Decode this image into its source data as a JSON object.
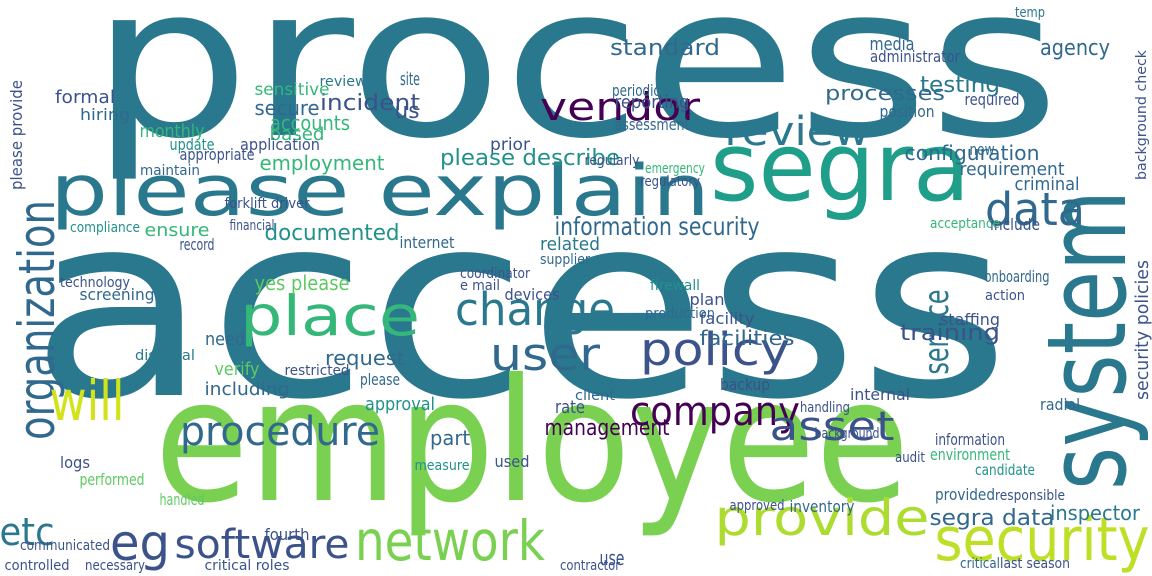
{
  "words": [
    {
      "text": "process",
      "color": "#2a788e"
    },
    {
      "text": "access",
      "color": "#2a788e"
    },
    {
      "text": "employee",
      "color": "#7ad151"
    },
    {
      "text": "please explain",
      "color": "#2a788e"
    },
    {
      "text": "segra",
      "color": "#1f9e89"
    },
    {
      "text": "system",
      "color": "#2a788e"
    },
    {
      "text": "security",
      "color": "#bddf26"
    },
    {
      "text": "provide",
      "color": "#addc30"
    },
    {
      "text": "network",
      "color": "#7ad151"
    },
    {
      "text": "software",
      "color": "#3b528b"
    },
    {
      "text": "procedure",
      "color": "#31688e"
    },
    {
      "text": "company",
      "color": "#440154"
    },
    {
      "text": "asset",
      "color": "#3b528b"
    },
    {
      "text": "organization",
      "color": "#31688e"
    },
    {
      "text": "will",
      "color": "#d2e21b"
    },
    {
      "text": "eg",
      "color": "#3b528b"
    },
    {
      "text": "etc",
      "color": "#2a788e"
    },
    {
      "text": "place",
      "color": "#35b779"
    },
    {
      "text": "change",
      "color": "#2a788e"
    },
    {
      "text": "user",
      "color": "#31688e"
    },
    {
      "text": "policy",
      "color": "#3b528b"
    },
    {
      "text": "data",
      "color": "#31688e"
    },
    {
      "text": "review",
      "color": "#2a788e"
    },
    {
      "text": "vendor",
      "color": "#440154"
    },
    {
      "text": "information security",
      "color": "#31688e"
    },
    {
      "text": "service",
      "color": "#2a788e"
    },
    {
      "text": "management",
      "color": "#440154"
    },
    {
      "text": "documented",
      "color": "#21918c"
    },
    {
      "text": "employment",
      "color": "#35b779"
    },
    {
      "text": "please describe",
      "color": "#21918c"
    },
    {
      "text": "incident",
      "color": "#3b528b"
    },
    {
      "text": "standard",
      "color": "#31688e"
    },
    {
      "text": "processes",
      "color": "#31688e"
    },
    {
      "text": "testing",
      "color": "#2a788e"
    },
    {
      "text": "agency",
      "color": "#31688e"
    },
    {
      "text": "segra data",
      "color": "#31688e"
    },
    {
      "text": "training",
      "color": "#3b528b"
    },
    {
      "text": "configuration",
      "color": "#31688e"
    },
    {
      "text": "requirement",
      "color": "#31688e"
    },
    {
      "text": "inspector",
      "color": "#2a788e"
    },
    {
      "text": "facilities",
      "color": "#31688e"
    },
    {
      "text": "yes please",
      "color": "#5ec962"
    },
    {
      "text": "us",
      "color": "#3b528b"
    },
    {
      "text": "accounts",
      "color": "#35b779"
    },
    {
      "text": "secure",
      "color": "#31688e"
    },
    {
      "text": "sensitive",
      "color": "#35b779"
    },
    {
      "text": "reviewed",
      "color": "#2a788e"
    },
    {
      "text": "site",
      "color": "#31688e"
    },
    {
      "text": "monthly",
      "color": "#35b779"
    },
    {
      "text": "update",
      "color": "#21918c"
    },
    {
      "text": "formal",
      "color": "#3b528b"
    },
    {
      "text": "hiring",
      "color": "#31688e"
    },
    {
      "text": "ensure",
      "color": "#35b779"
    },
    {
      "text": "compliance",
      "color": "#21918c"
    },
    {
      "text": "screening",
      "color": "#31688e"
    },
    {
      "text": "technology",
      "color": "#3b528b"
    },
    {
      "text": "need",
      "color": "#31688e"
    },
    {
      "text": "verify",
      "color": "#5ec962"
    },
    {
      "text": "including",
      "color": "#31688e"
    },
    {
      "text": "disposal",
      "color": "#2a788e"
    },
    {
      "text": "request",
      "color": "#31688e"
    },
    {
      "text": "restricted",
      "color": "#3b528b"
    },
    {
      "text": "please",
      "color": "#31688e"
    },
    {
      "text": "based",
      "color": "#35b779"
    },
    {
      "text": "application",
      "color": "#3b528b"
    },
    {
      "text": "reporting",
      "color": "#3b528b"
    },
    {
      "text": "periodic",
      "color": "#31688e"
    },
    {
      "text": "assessment",
      "color": "#31688e"
    },
    {
      "text": "prior",
      "color": "#3b528b"
    },
    {
      "text": "related",
      "color": "#2a788e"
    },
    {
      "text": "supplier",
      "color": "#31688e"
    },
    {
      "text": "devices",
      "color": "#3b528b"
    },
    {
      "text": "firewall",
      "color": "#21918c"
    },
    {
      "text": "plan",
      "color": "#3b528b"
    },
    {
      "text": "production",
      "color": "#31688e"
    },
    {
      "text": "approval",
      "color": "#21918c"
    },
    {
      "text": "rate",
      "color": "#3b528b"
    },
    {
      "text": "client",
      "color": "#31688e"
    },
    {
      "text": "part",
      "color": "#31688e"
    },
    {
      "text": "logs",
      "color": "#3b528b"
    },
    {
      "text": "performed",
      "color": "#5ec962"
    },
    {
      "text": "handled",
      "color": "#5ec962"
    },
    {
      "text": "inventory",
      "color": "#31688e"
    },
    {
      "text": "environment",
      "color": "#35b779"
    },
    {
      "text": "information",
      "color": "#3b528b"
    },
    {
      "text": "candidate",
      "color": "#21918c"
    },
    {
      "text": "radial",
      "color": "#31688e"
    },
    {
      "text": "onboarding",
      "color": "#31688e"
    },
    {
      "text": "action",
      "color": "#3b528b"
    },
    {
      "text": "criminal",
      "color": "#31688e"
    },
    {
      "text": "background check",
      "color": "#3b528b"
    },
    {
      "text": "security policies",
      "color": "#3b528b"
    },
    {
      "text": "please provide",
      "color": "#3b528b"
    },
    {
      "text": "temp",
      "color": "#2a788e"
    },
    {
      "text": "media",
      "color": "#31688e"
    },
    {
      "text": "administrator",
      "color": "#3b528b"
    },
    {
      "text": "position",
      "color": "#31688e"
    },
    {
      "text": "required",
      "color": "#3b528b"
    },
    {
      "text": "internet",
      "color": "#31688e"
    },
    {
      "text": "coordinator",
      "color": "#3b528b"
    },
    {
      "text": "e mail",
      "color": "#3b528b"
    },
    {
      "text": "facility",
      "color": "#3b528b"
    },
    {
      "text": "backup",
      "color": "#3b528b"
    },
    {
      "text": "internal",
      "color": "#3b528b"
    },
    {
      "text": "handling",
      "color": "#3b528b"
    },
    {
      "text": "background",
      "color": "#3b528b"
    },
    {
      "text": "audit",
      "color": "#3b528b"
    },
    {
      "text": "used",
      "color": "#3b528b"
    },
    {
      "text": "measure",
      "color": "#21918c"
    },
    {
      "text": "use",
      "color": "#3b528b"
    },
    {
      "text": "contractor",
      "color": "#3b528b"
    },
    {
      "text": "communicated",
      "color": "#3b528b"
    },
    {
      "text": "controlled",
      "color": "#3b528b"
    },
    {
      "text": "critical roles",
      "color": "#3b528b"
    },
    {
      "text": "necessary",
      "color": "#3b528b"
    },
    {
      "text": "fourth",
      "color": "#3b528b"
    },
    {
      "text": "approved",
      "color": "#3b528b"
    },
    {
      "text": "last season",
      "color": "#3b528b"
    },
    {
      "text": "critical",
      "color": "#31688e"
    },
    {
      "text": "provided",
      "color": "#31688e"
    },
    {
      "text": "responsible",
      "color": "#3b528b"
    },
    {
      "text": "forklift driver",
      "color": "#3b528b"
    },
    {
      "text": "financial",
      "color": "#3b528b"
    },
    {
      "text": "record",
      "color": "#3b528b"
    },
    {
      "text": "appropriate",
      "color": "#3b528b"
    },
    {
      "text": "maintain",
      "color": "#31688e"
    },
    {
      "text": "new",
      "color": "#31688e"
    },
    {
      "text": "include",
      "color": "#3b528b"
    },
    {
      "text": "acceptance",
      "color": "#35b779"
    },
    {
      "text": "staffing",
      "color": "#3b528b"
    },
    {
      "text": "regularly",
      "color": "#3b528b"
    },
    {
      "text": "regulatory",
      "color": "#3b528b"
    },
    {
      "text": "emergency",
      "color": "#35b779"
    }
  ]
}
